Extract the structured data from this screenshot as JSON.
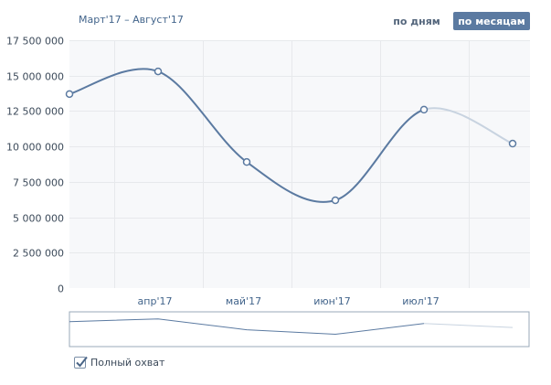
{
  "header": {
    "range_label": "Март'17 – Август'17",
    "btn_days": "по дням",
    "btn_months": "по месяцам"
  },
  "footer": {
    "coverage_label": "Полный охват",
    "coverage_checked": true
  },
  "colors": {
    "line": "#5b7aa1",
    "line_light": "#c8d3e0",
    "grid": "#e7e9ec",
    "panel_bg": "#f7f8fa",
    "point_fill": "#ffffff"
  },
  "chart_data": {
    "type": "line",
    "title": "",
    "xlabel": "",
    "ylabel": "",
    "x": [
      "Mar'17",
      "Apr'17",
      "May'17",
      "Jun'17",
      "Jul'17",
      "Aug'17"
    ],
    "series": [
      {
        "values": [
          13700000,
          15300000,
          8900000,
          6200000,
          12600000,
          10200000
        ]
      }
    ],
    "partial_last_segment": true,
    "x_tick_labels": [
      "апр'17",
      "май'17",
      "июн'17",
      "июл'17"
    ],
    "y_ticks": [
      0,
      2500000,
      5000000,
      7500000,
      10000000,
      12500000,
      15000000,
      17500000
    ],
    "y_tick_labels": [
      "0",
      "2 500 000",
      "5 000 000",
      "7 500 000",
      "10 000 000",
      "12 500 000",
      "15 000 000",
      "17 500 000"
    ],
    "ylim": [
      0,
      17500000
    ],
    "grid": true,
    "navigator": true
  }
}
